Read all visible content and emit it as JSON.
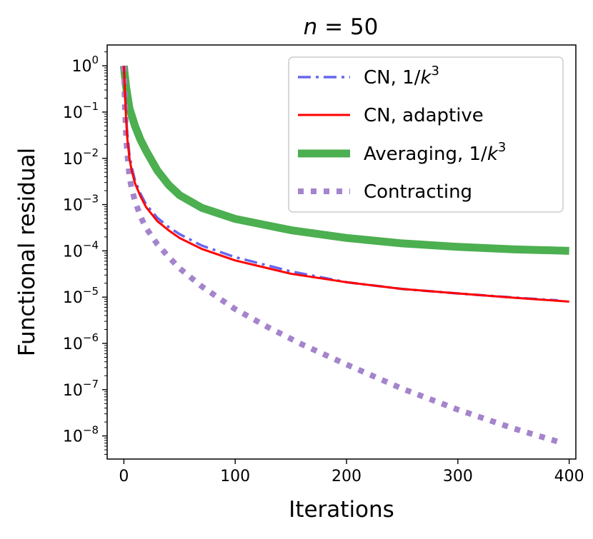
{
  "chart_data": {
    "type": "line",
    "title": "n = 50",
    "title_var": "n",
    "title_rest": " = 50",
    "xlabel": "Iterations",
    "ylabel": "Functional residual",
    "xlim": [
      -15,
      406
    ],
    "ylim_log10": [
      -8.5,
      0.45
    ],
    "yscale": "log",
    "x_ticks": [
      0,
      100,
      200,
      300,
      400
    ],
    "x_tick_labels": [
      "0",
      "100",
      "200",
      "300",
      "400"
    ],
    "y_ticks": [
      {
        "exp": 0,
        "base": "10",
        "sup": "0"
      },
      {
        "exp": -1,
        "base": "10",
        "sup": "−1"
      },
      {
        "exp": -2,
        "base": "10",
        "sup": "−2"
      },
      {
        "exp": -3,
        "base": "10",
        "sup": "−3"
      },
      {
        "exp": -4,
        "base": "10",
        "sup": "−4"
      },
      {
        "exp": -5,
        "base": "10",
        "sup": "−5"
      },
      {
        "exp": -6,
        "base": "10",
        "sup": "−6"
      },
      {
        "exp": -7,
        "base": "10",
        "sup": "−7"
      },
      {
        "exp": -8,
        "base": "10",
        "sup": "−8"
      }
    ],
    "legend_position": "top-right",
    "series": [
      {
        "name": "CN, 1/k³",
        "label_main": "CN, 1/",
        "label_var": "k",
        "label_sup": "3",
        "color": "#6666ee",
        "style": "dashdot",
        "x": [
          0,
          1,
          2,
          3,
          5,
          7,
          10,
          15,
          20,
          30,
          40,
          50,
          70,
          100,
          150,
          200,
          250,
          300,
          350,
          390
        ],
        "y": [
          1.0,
          0.3,
          0.09,
          0.035,
          0.012,
          0.0065,
          0.0033,
          0.0017,
          0.001,
          0.00052,
          0.00033,
          0.00023,
          0.00013,
          7.3e-05,
          3.6e-05,
          2.1e-05,
          1.5e-05,
          1.2e-05,
          9.8e-06,
          8.5e-06
        ]
      },
      {
        "name": "CN, adaptive",
        "label_main": "CN, adaptive",
        "label_var": "",
        "label_sup": "",
        "color": "#ff0000",
        "style": "solid",
        "x": [
          0,
          1,
          2,
          3,
          5,
          7,
          10,
          15,
          20,
          30,
          40,
          50,
          70,
          100,
          150,
          200,
          250,
          300,
          350,
          400
        ],
        "y": [
          1.0,
          0.25,
          0.07,
          0.028,
          0.01,
          0.0055,
          0.0029,
          0.0015,
          0.00088,
          0.00044,
          0.00028,
          0.00019,
          0.00011,
          6.2e-05,
          3.2e-05,
          2.1e-05,
          1.5e-05,
          1.2e-05,
          9.7e-06,
          8e-06
        ]
      },
      {
        "name": "Averaging, 1/k³",
        "label_main": "Averaging, 1/",
        "label_var": "k",
        "label_sup": "3",
        "color": "#4caf50",
        "style": "thick",
        "x": [
          0,
          2,
          5,
          10,
          15,
          20,
          30,
          40,
          50,
          70,
          100,
          150,
          200,
          250,
          300,
          350,
          400
        ],
        "y": [
          1.0,
          0.35,
          0.12,
          0.05,
          0.025,
          0.0145,
          0.0055,
          0.0027,
          0.0016,
          0.00085,
          0.00049,
          0.00028,
          0.00019,
          0.000145,
          0.000122,
          0.000108,
          0.0001
        ]
      },
      {
        "name": "Contracting",
        "label_main": "Contracting",
        "label_var": "",
        "label_sup": "",
        "color": "#a484cc",
        "style": "dotted",
        "x": [
          0,
          1,
          2,
          3,
          5,
          7,
          10,
          15,
          20,
          30,
          40,
          50,
          70,
          100,
          130,
          160,
          200,
          250,
          300,
          350,
          390
        ],
        "y": [
          1.0,
          0.12,
          0.03,
          0.013,
          0.004,
          0.0022,
          0.0012,
          0.00055,
          0.00031,
          0.00014,
          7.5e-05,
          4.2e-05,
          1.7e-05,
          5.5e-06,
          2.2e-06,
          9.5e-07,
          3.5e-07,
          1.05e-07,
          3.7e-08,
          1.45e-08,
          7.5e-09
        ]
      }
    ]
  }
}
